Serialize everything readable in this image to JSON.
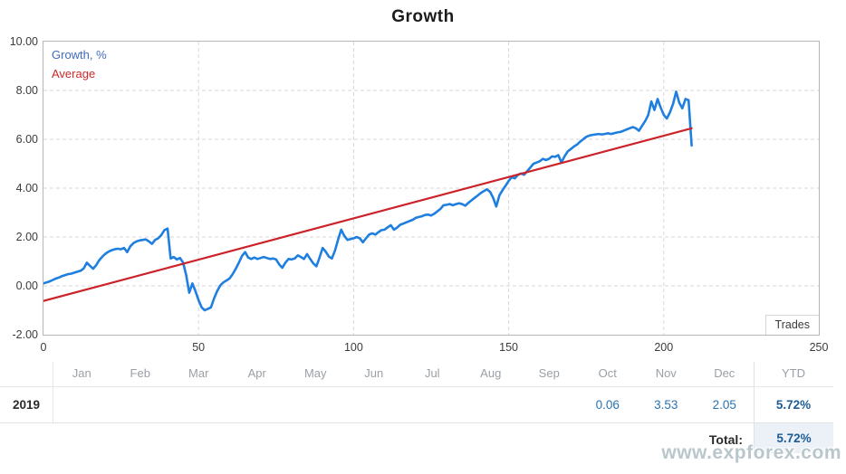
{
  "title": "Growth",
  "watermark": "www.expforex.com",
  "colors": {
    "growth_line": "#1e7fdf",
    "average_line": "#cc2229",
    "legend_growth": "#3f6bbf",
    "legend_average": "#cc2a2a",
    "value_text": "#2874b2",
    "ytd_text": "#1d5c94",
    "header_text": "#9aa0a6",
    "year_text": "#2b2b2b",
    "total_cell_bg": "#ecf1f8",
    "watermark_color": "#b9c7cc",
    "grid_color": "#d7d7d7",
    "plot_border": "#b6b6b6",
    "axis_text": "#3b3b3b"
  },
  "chart_data": {
    "type": "line",
    "title": "Growth",
    "xlabel": "Trades",
    "ylabel": "",
    "xlim": [
      0,
      250
    ],
    "ylim": [
      -2,
      10
    ],
    "x_ticks": [
      0,
      50,
      100,
      150,
      200,
      250
    ],
    "y_ticks": [
      "10.00",
      "8.00",
      "6.00",
      "4.00",
      "2.00",
      "0.00",
      "-2.00"
    ],
    "grid": true,
    "legend_position": "top-left",
    "series": [
      {
        "name": "Growth, %",
        "color_key": "growth_line",
        "values": [
          0.1,
          0.14,
          0.18,
          0.24,
          0.3,
          0.34,
          0.4,
          0.44,
          0.48,
          0.5,
          0.54,
          0.58,
          0.62,
          0.72,
          0.95,
          0.82,
          0.7,
          0.85,
          1.05,
          1.2,
          1.32,
          1.4,
          1.46,
          1.5,
          1.52,
          1.5,
          1.55,
          1.38,
          1.62,
          1.75,
          1.82,
          1.86,
          1.88,
          1.9,
          1.82,
          1.72,
          1.88,
          1.95,
          2.08,
          2.28,
          2.35,
          1.12,
          1.18,
          1.08,
          1.14,
          0.96,
          0.45,
          -0.28,
          0.1,
          -0.22,
          -0.58,
          -0.88,
          -1.0,
          -0.94,
          -0.88,
          -0.52,
          -0.22,
          0.02,
          0.14,
          0.22,
          0.3,
          0.48,
          0.7,
          0.95,
          1.22,
          1.38,
          1.16,
          1.1,
          1.16,
          1.1,
          1.14,
          1.18,
          1.14,
          1.1,
          1.12,
          1.08,
          0.88,
          0.74,
          0.95,
          1.1,
          1.08,
          1.12,
          1.25,
          1.18,
          1.1,
          1.3,
          1.1,
          0.92,
          0.8,
          1.15,
          1.55,
          1.4,
          1.2,
          1.12,
          1.45,
          1.9,
          2.3,
          2.05,
          1.88,
          1.92,
          1.95,
          2.0,
          1.95,
          1.78,
          1.95,
          2.1,
          2.15,
          2.1,
          2.2,
          2.28,
          2.3,
          2.4,
          2.48,
          2.3,
          2.38,
          2.5,
          2.55,
          2.6,
          2.65,
          2.7,
          2.78,
          2.82,
          2.85,
          2.9,
          2.92,
          2.88,
          2.95,
          3.05,
          3.15,
          3.3,
          3.32,
          3.35,
          3.3,
          3.35,
          3.38,
          3.35,
          3.28,
          3.4,
          3.5,
          3.6,
          3.7,
          3.8,
          3.88,
          3.95,
          3.85,
          3.6,
          3.25,
          3.7,
          3.92,
          4.1,
          4.3,
          4.45,
          4.4,
          4.55,
          4.6,
          4.55,
          4.7,
          4.85,
          5.0,
          5.05,
          5.1,
          5.2,
          5.15,
          5.2,
          5.3,
          5.28,
          5.35,
          5.05,
          5.3,
          5.5,
          5.6,
          5.7,
          5.78,
          5.9,
          6.0,
          6.1,
          6.15,
          6.18,
          6.2,
          6.22,
          6.2,
          6.22,
          6.25,
          6.22,
          6.25,
          6.28,
          6.3,
          6.35,
          6.4,
          6.45,
          6.5,
          6.45,
          6.35,
          6.55,
          6.75,
          7.0,
          7.55,
          7.2,
          7.65,
          7.3,
          7.0,
          6.85,
          7.1,
          7.45,
          7.95,
          7.5,
          7.27,
          7.65,
          7.6,
          5.75
        ]
      },
      {
        "name": "Average",
        "color_key": "average_line",
        "x": [
          0,
          209
        ],
        "values": [
          -0.62,
          6.45
        ]
      }
    ]
  },
  "table": {
    "columns": [
      "Jan",
      "Feb",
      "Mar",
      "Apr",
      "May",
      "Jun",
      "Jul",
      "Aug",
      "Sep",
      "Oct",
      "Nov",
      "Dec",
      "YTD"
    ],
    "rows": [
      {
        "year": "2019",
        "cells": [
          "",
          "",
          "",
          "",
          "",
          "",
          "",
          "",
          "",
          "0.06",
          "3.53",
          "2.05",
          "5.72%"
        ]
      }
    ],
    "total": {
      "label": "Total:",
      "value": "5.72%"
    }
  }
}
